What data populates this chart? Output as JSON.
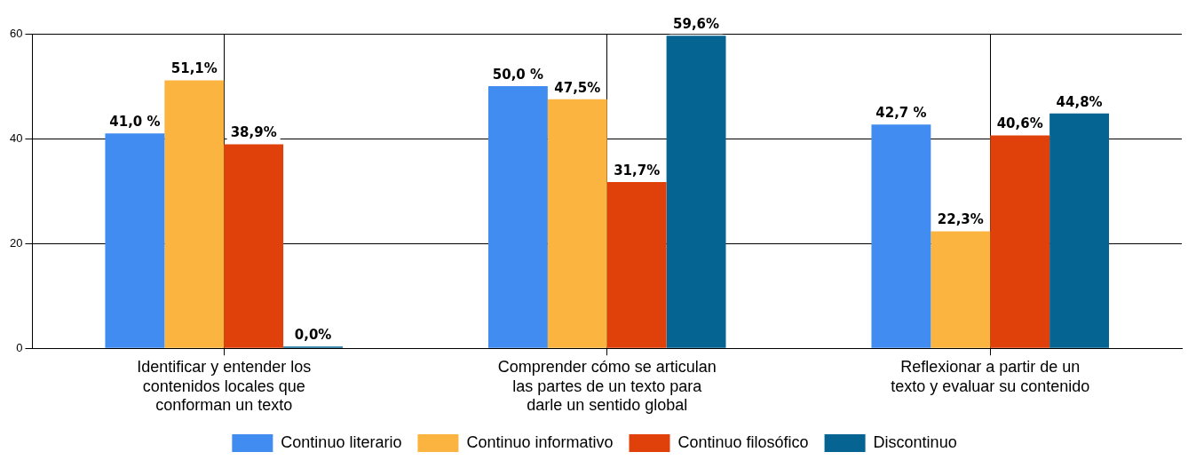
{
  "chart_data": {
    "type": "bar",
    "categories": [
      "Identificar y entender los contenidos locales que conforman un texto",
      "Comprender cómo se articulan las partes de un texto para darle un sentido global",
      "Reflexionar a partir de un texto y evaluar su contenido"
    ],
    "series": [
      {
        "name": "Continuo literario",
        "color": "#418cf0",
        "values": [
          41.0,
          50.0,
          42.7
        ],
        "value_labels": [
          "41,0 %",
          "50,0 %",
          "42,7 %"
        ]
      },
      {
        "name": "Continuo informativo",
        "color": "#fcb441",
        "values": [
          51.1,
          47.5,
          22.3
        ],
        "value_labels": [
          "51,1%",
          "47,5%",
          "22,3%"
        ]
      },
      {
        "name": "Continuo filosófico",
        "color": "#e0400a",
        "values": [
          38.9,
          31.7,
          40.6
        ],
        "value_labels": [
          "38,9%",
          "31,7%",
          "40,6%"
        ]
      },
      {
        "name": "Discontinuo",
        "color": "#056492",
        "values": [
          0.0,
          59.6,
          44.8
        ],
        "value_labels": [
          "0,0%",
          "59,6%",
          "44,8%"
        ]
      }
    ],
    "ylim": [
      0,
      60
    ],
    "yticks": [
      0,
      20,
      40,
      60
    ],
    "grid": true,
    "legend": "bottom"
  }
}
